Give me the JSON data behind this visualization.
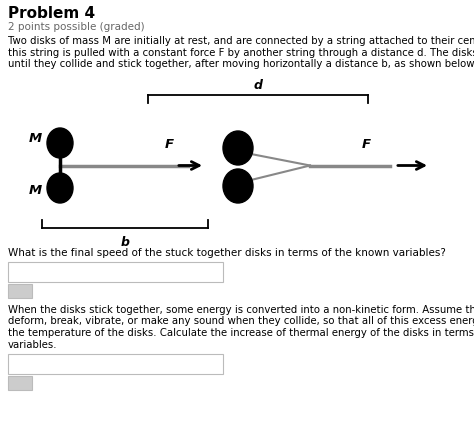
{
  "title": "Problem 4",
  "subtitle": "2 points possible (graded)",
  "bg_color": "#ffffff",
  "text_color": "#000000",
  "disk_color": "#000000",
  "gray_line_color": "#888888",
  "label_M": "M",
  "label_F": "F",
  "label_d": "d",
  "label_b": "b",
  "fig_w": 4.74,
  "fig_h": 4.42,
  "dpi": 100
}
